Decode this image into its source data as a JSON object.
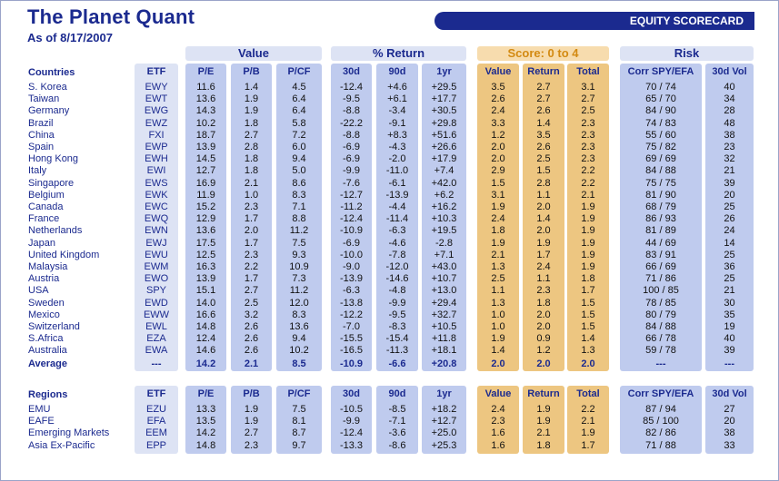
{
  "header": {
    "title": "The Planet Quant",
    "date": "As of 8/17/2007",
    "banner": "EQUITY SCORECARD"
  },
  "groups": [
    "Value",
    "% Return",
    "Score: 0 to 4",
    "Risk"
  ],
  "columns": [
    "ETF",
    "P/E",
    "P/B",
    "P/CF",
    "30d",
    "90d",
    "1yr",
    "Value",
    "Return",
    "Total",
    "Corr SPY/EFA",
    "30d Vol"
  ],
  "countries": {
    "heading": "Countries",
    "rows": [
      [
        "S. Korea",
        "EWY",
        "11.6",
        "1.4",
        "4.5",
        "-12.4",
        "+4.6",
        "+29.5",
        "3.5",
        "2.7",
        "3.1",
        "70 / 74",
        "40"
      ],
      [
        "Taiwan",
        "EWT",
        "13.6",
        "1.9",
        "6.4",
        "-9.5",
        "+6.1",
        "+17.7",
        "2.6",
        "2.7",
        "2.7",
        "65 / 70",
        "34"
      ],
      [
        "Germany",
        "EWG",
        "14.3",
        "1.9",
        "6.4",
        "-8.8",
        "-3.4",
        "+30.5",
        "2.4",
        "2.6",
        "2.5",
        "84 / 90",
        "28"
      ],
      [
        "Brazil",
        "EWZ",
        "10.2",
        "1.8",
        "5.8",
        "-22.2",
        "-9.1",
        "+29.8",
        "3.3",
        "1.4",
        "2.3",
        "74 / 83",
        "48"
      ],
      [
        "China",
        "FXI",
        "18.7",
        "2.7",
        "7.2",
        "-8.8",
        "+8.3",
        "+51.6",
        "1.2",
        "3.5",
        "2.3",
        "55 / 60",
        "38"
      ],
      [
        "Spain",
        "EWP",
        "13.9",
        "2.8",
        "6.0",
        "-6.9",
        "-4.3",
        "+26.6",
        "2.0",
        "2.6",
        "2.3",
        "75 / 82",
        "23"
      ],
      [
        "Hong Kong",
        "EWH",
        "14.5",
        "1.8",
        "9.4",
        "-6.9",
        "-2.0",
        "+17.9",
        "2.0",
        "2.5",
        "2.3",
        "69 / 69",
        "32"
      ],
      [
        "Italy",
        "EWI",
        "12.7",
        "1.8",
        "5.0",
        "-9.9",
        "-11.0",
        "+7.4",
        "2.9",
        "1.5",
        "2.2",
        "84 / 88",
        "21"
      ],
      [
        "Singapore",
        "EWS",
        "16.9",
        "2.1",
        "8.6",
        "-7.6",
        "-6.1",
        "+42.0",
        "1.5",
        "2.8",
        "2.2",
        "75 / 75",
        "39"
      ],
      [
        "Belgium",
        "EWK",
        "11.9",
        "1.0",
        "8.3",
        "-12.7",
        "-13.9",
        "+6.2",
        "3.1",
        "1.1",
        "2.1",
        "81 / 90",
        "20"
      ],
      [
        "Canada",
        "EWC",
        "15.2",
        "2.3",
        "7.1",
        "-11.2",
        "-4.4",
        "+16.2",
        "1.9",
        "2.0",
        "1.9",
        "68 / 79",
        "25"
      ],
      [
        "France",
        "EWQ",
        "12.9",
        "1.7",
        "8.8",
        "-12.4",
        "-11.4",
        "+10.3",
        "2.4",
        "1.4",
        "1.9",
        "86 / 93",
        "26"
      ],
      [
        "Netherlands",
        "EWN",
        "13.6",
        "2.0",
        "11.2",
        "-10.9",
        "-6.3",
        "+19.5",
        "1.8",
        "2.0",
        "1.9",
        "81 / 89",
        "24"
      ],
      [
        "Japan",
        "EWJ",
        "17.5",
        "1.7",
        "7.5",
        "-6.9",
        "-4.6",
        "-2.8",
        "1.9",
        "1.9",
        "1.9",
        "44 / 69",
        "14"
      ],
      [
        "United Kingdom",
        "EWU",
        "12.5",
        "2.3",
        "9.3",
        "-10.0",
        "-7.8",
        "+7.1",
        "2.1",
        "1.7",
        "1.9",
        "83 / 91",
        "25"
      ],
      [
        "Malaysia",
        "EWM",
        "16.3",
        "2.2",
        "10.9",
        "-9.0",
        "-12.0",
        "+43.0",
        "1.3",
        "2.4",
        "1.9",
        "66 / 69",
        "36"
      ],
      [
        "Austria",
        "EWO",
        "13.9",
        "1.7",
        "7.3",
        "-13.9",
        "-14.6",
        "+10.7",
        "2.5",
        "1.1",
        "1.8",
        "71 / 86",
        "25"
      ],
      [
        "USA",
        "SPY",
        "15.1",
        "2.7",
        "11.2",
        "-6.3",
        "-4.8",
        "+13.0",
        "1.1",
        "2.3",
        "1.7",
        "100 / 85",
        "21"
      ],
      [
        "Sweden",
        "EWD",
        "14.0",
        "2.5",
        "12.0",
        "-13.8",
        "-9.9",
        "+29.4",
        "1.3",
        "1.8",
        "1.5",
        "78 / 85",
        "30"
      ],
      [
        "Mexico",
        "EWW",
        "16.6",
        "3.2",
        "8.3",
        "-12.2",
        "-9.5",
        "+32.7",
        "1.0",
        "2.0",
        "1.5",
        "80 / 79",
        "35"
      ],
      [
        "Switzerland",
        "EWL",
        "14.8",
        "2.6",
        "13.6",
        "-7.0",
        "-8.3",
        "+10.5",
        "1.0",
        "2.0",
        "1.5",
        "84 / 88",
        "19"
      ],
      [
        "S.Africa",
        "EZA",
        "12.4",
        "2.6",
        "9.4",
        "-15.5",
        "-15.4",
        "+11.8",
        "1.9",
        "0.9",
        "1.4",
        "66 / 78",
        "40"
      ],
      [
        "Australia",
        "EWA",
        "14.6",
        "2.6",
        "10.2",
        "-16.5",
        "-11.3",
        "+18.1",
        "1.4",
        "1.2",
        "1.3",
        "59 / 78",
        "39"
      ]
    ],
    "average": [
      "Average",
      "---",
      "14.2",
      "2.1",
      "8.5",
      "-10.9",
      "-6.6",
      "+20.8",
      "2.0",
      "2.0",
      "2.0",
      "---",
      "---"
    ]
  },
  "regions": {
    "heading": "Regions",
    "rows": [
      [
        "EMU",
        "EZU",
        "13.3",
        "1.9",
        "7.5",
        "-10.5",
        "-8.5",
        "+18.2",
        "2.4",
        "1.9",
        "2.2",
        "87 / 94",
        "27"
      ],
      [
        "EAFE",
        "EFA",
        "13.5",
        "1.9",
        "8.1",
        "-9.9",
        "-7.1",
        "+12.7",
        "2.3",
        "1.9",
        "2.1",
        "85 / 100",
        "20"
      ],
      [
        "Emerging Markets",
        "EEM",
        "14.2",
        "2.7",
        "8.7",
        "-12.4",
        "-3.6",
        "+25.0",
        "1.6",
        "2.1",
        "1.9",
        "82 / 86",
        "38"
      ],
      [
        "Asia Ex-Pacific",
        "EPP",
        "14.8",
        "2.3",
        "9.7",
        "-13.3",
        "-8.6",
        "+25.3",
        "1.6",
        "1.8",
        "1.7",
        "71 / 88",
        "33"
      ]
    ]
  },
  "colors": {
    "navy": "#1b2a8f",
    "blue_band": "#dde3f4",
    "gold_band": "#f7dcae",
    "gold_text": "#d38a12"
  }
}
